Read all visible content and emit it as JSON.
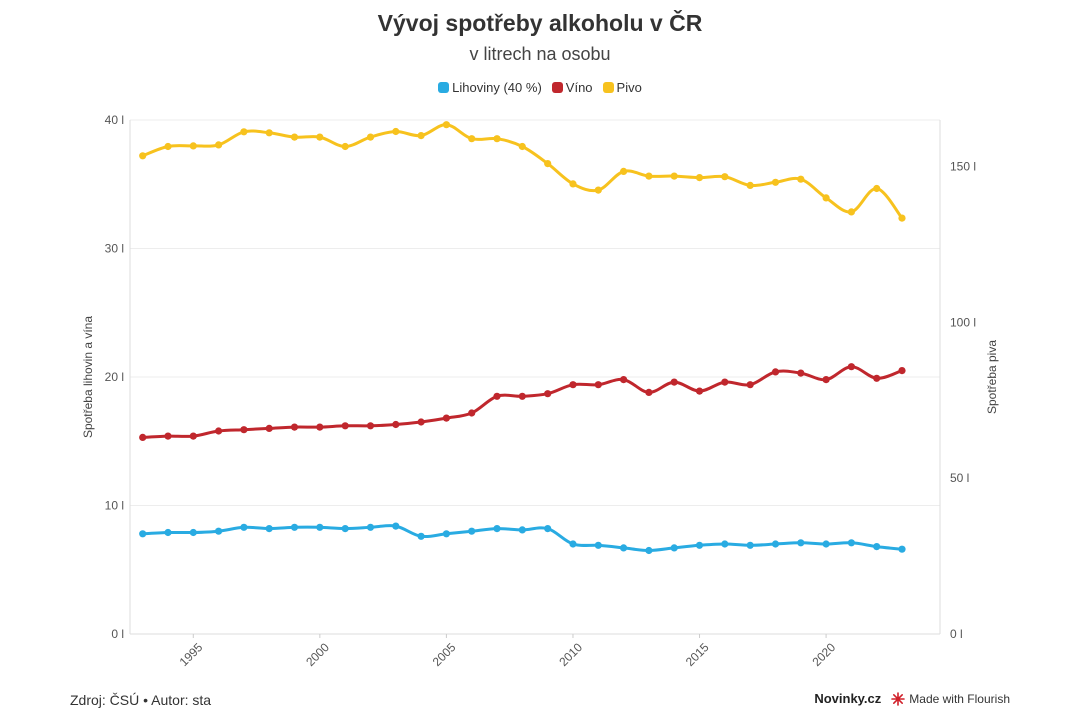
{
  "header": {
    "title": "Vývoj spotřeby alkoholu v ČR",
    "subtitle": "v litrech na osobu"
  },
  "footer": {
    "source": "Zdroj: ČSÚ • Autor: sta",
    "brand": "Novinky.cz",
    "flourish": "Made with Flourish"
  },
  "colors": {
    "lihoviny": "#29abe2",
    "vino": "#c0272d",
    "pivo": "#f7c21e",
    "grid": "#ededed"
  },
  "chart_data": {
    "type": "line",
    "title": "Vývoj spotřeby alkoholu v ČR",
    "subtitle": "v litrech na osobu",
    "legend_position": "top-center",
    "grid": true,
    "x_range": [
      1992.5,
      2024.5
    ],
    "x_tick_values": [
      1995,
      2000,
      2005,
      2010,
      2015,
      2020
    ],
    "x_tick_labels": [
      "1995",
      "2000",
      "2005",
      "2010",
      "2015",
      "2020"
    ],
    "y_left": {
      "label": "Spotřeba lihovin a vína",
      "range": [
        0,
        40
      ],
      "tick_values": [
        0,
        10,
        20,
        30,
        40
      ],
      "tick_labels": [
        "0 l",
        "10 l",
        "20 l",
        "30 l",
        "40 l"
      ]
    },
    "y_right": {
      "label": "Spotřeba piva",
      "range": [
        0,
        165
      ],
      "tick_values": [
        0,
        50,
        100,
        150
      ],
      "tick_labels": [
        "0 l",
        "50 l",
        "100 l",
        "150 l"
      ]
    },
    "x": [
      1993,
      1994,
      1995,
      1996,
      1997,
      1998,
      1999,
      2000,
      2001,
      2002,
      2003,
      2004,
      2005,
      2006,
      2007,
      2008,
      2009,
      2010,
      2011,
      2012,
      2013,
      2014,
      2015,
      2016,
      2017,
      2018,
      2019,
      2020,
      2021,
      2022,
      2023
    ],
    "series": [
      {
        "name": "Lihoviny (40 %)",
        "axis": "left",
        "color": "#29abe2",
        "values": [
          7.8,
          7.9,
          7.9,
          8.0,
          8.3,
          8.2,
          8.3,
          8.3,
          8.2,
          8.3,
          8.4,
          7.6,
          7.8,
          8.0,
          8.2,
          8.1,
          8.2,
          7.0,
          6.9,
          6.7,
          6.5,
          6.7,
          6.9,
          7.0,
          6.9,
          7.0,
          7.1,
          7.0,
          7.1,
          6.8,
          6.6
        ]
      },
      {
        "name": "Víno",
        "axis": "left",
        "color": "#c0272d",
        "values": [
          15.3,
          15.4,
          15.4,
          15.8,
          15.9,
          16.0,
          16.1,
          16.1,
          16.2,
          16.2,
          16.3,
          16.5,
          16.8,
          17.2,
          18.5,
          18.5,
          18.7,
          19.4,
          19.4,
          19.8,
          18.8,
          19.6,
          18.9,
          19.6,
          19.4,
          20.4,
          20.3,
          19.8,
          20.8,
          19.9,
          20.5
        ]
      },
      {
        "name": "Pivo",
        "axis": "right",
        "color": "#f7c21e",
        "values": [
          153.5,
          156.5,
          156.7,
          157.0,
          161.2,
          160.9,
          159.5,
          159.5,
          156.5,
          159.5,
          161.3,
          160.0,
          163.5,
          159.0,
          159.0,
          156.5,
          151.0,
          144.5,
          142.5,
          148.5,
          147.0,
          147.0,
          146.5,
          146.8,
          144.0,
          145.0,
          146.0,
          140.0,
          135.5,
          143.0,
          133.5
        ]
      }
    ]
  }
}
